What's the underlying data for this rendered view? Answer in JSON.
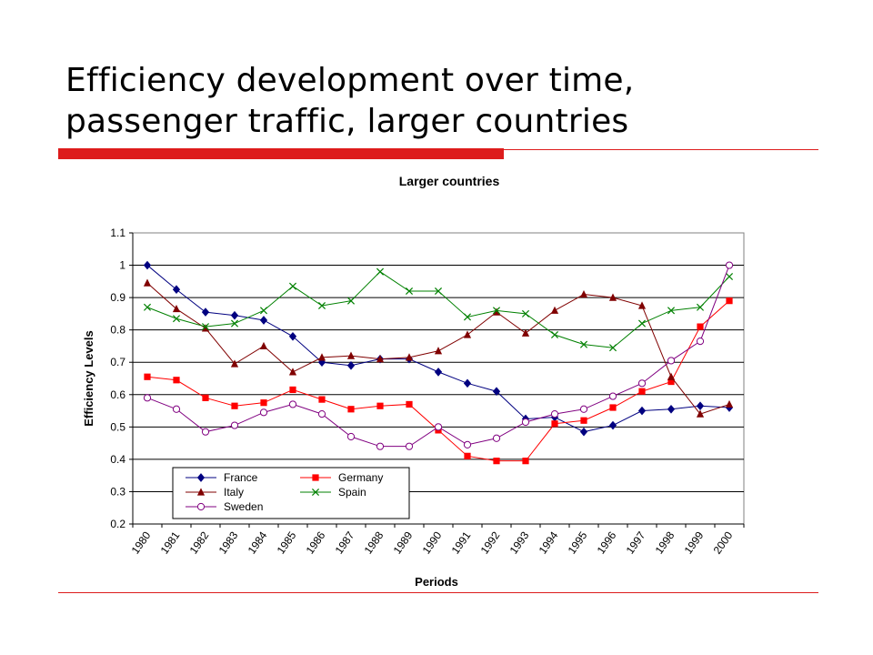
{
  "slide": {
    "title_line1": "Efficiency development over time,",
    "title_line2": "passenger traffic, larger countries",
    "accent_color": "#dd1c1c"
  },
  "chart_data": {
    "type": "line",
    "title": "Larger countries",
    "xlabel": "Periods",
    "ylabel": "Efficiency Levels",
    "ylim": [
      0.2,
      1.1
    ],
    "yticks": [
      "0.2",
      "0.3",
      "0.4",
      "0.5",
      "0.6",
      "0.7",
      "0.8",
      "0.9",
      "1",
      "1.1"
    ],
    "categories": [
      "1980",
      "1981",
      "1982",
      "1983",
      "1984",
      "1985",
      "1986",
      "1987",
      "1988",
      "1989",
      "1990",
      "1991",
      "1992",
      "1993",
      "1994",
      "1995",
      "1996",
      "1997",
      "1998",
      "1999",
      "2000"
    ],
    "grid": "horizontal",
    "legend_position": "bottom-left inside plot",
    "series": [
      {
        "name": "France",
        "color": "#000080",
        "marker": "diamond",
        "values": [
          1.0,
          0.925,
          0.855,
          0.845,
          0.83,
          0.78,
          0.7,
          0.69,
          0.71,
          0.71,
          0.67,
          0.635,
          0.61,
          0.525,
          0.53,
          0.485,
          0.505,
          0.55,
          0.555,
          0.565,
          0.56
        ]
      },
      {
        "name": "Germany",
        "color": "#ff0000",
        "marker": "square",
        "values": [
          0.655,
          0.645,
          0.59,
          0.565,
          0.575,
          0.615,
          0.585,
          0.555,
          0.565,
          0.57,
          0.49,
          0.41,
          0.395,
          0.395,
          0.51,
          0.52,
          0.56,
          0.61,
          0.64,
          0.81,
          0.89
        ]
      },
      {
        "name": "Italy",
        "color": "#800000",
        "marker": "triangle",
        "values": [
          0.945,
          0.865,
          0.805,
          0.695,
          0.75,
          0.67,
          0.715,
          0.72,
          0.71,
          0.715,
          0.735,
          0.785,
          0.855,
          0.79,
          0.86,
          0.91,
          0.9,
          0.875,
          0.655,
          0.54,
          0.57
        ]
      },
      {
        "name": "Spain",
        "color": "#008000",
        "marker": "x",
        "values": [
          0.87,
          0.835,
          0.81,
          0.82,
          0.86,
          0.935,
          0.875,
          0.89,
          0.98,
          0.92,
          0.92,
          0.84,
          0.86,
          0.85,
          0.785,
          0.755,
          0.745,
          0.82,
          0.86,
          0.87,
          0.965
        ]
      },
      {
        "name": "Sweden",
        "color": "#800080",
        "marker": "circle",
        "values": [
          0.59,
          0.555,
          0.485,
          0.505,
          0.545,
          0.57,
          0.54,
          0.47,
          0.44,
          0.44,
          0.5,
          0.445,
          0.465,
          0.515,
          0.54,
          0.555,
          0.595,
          0.635,
          0.705,
          0.765,
          1.0
        ]
      }
    ]
  }
}
